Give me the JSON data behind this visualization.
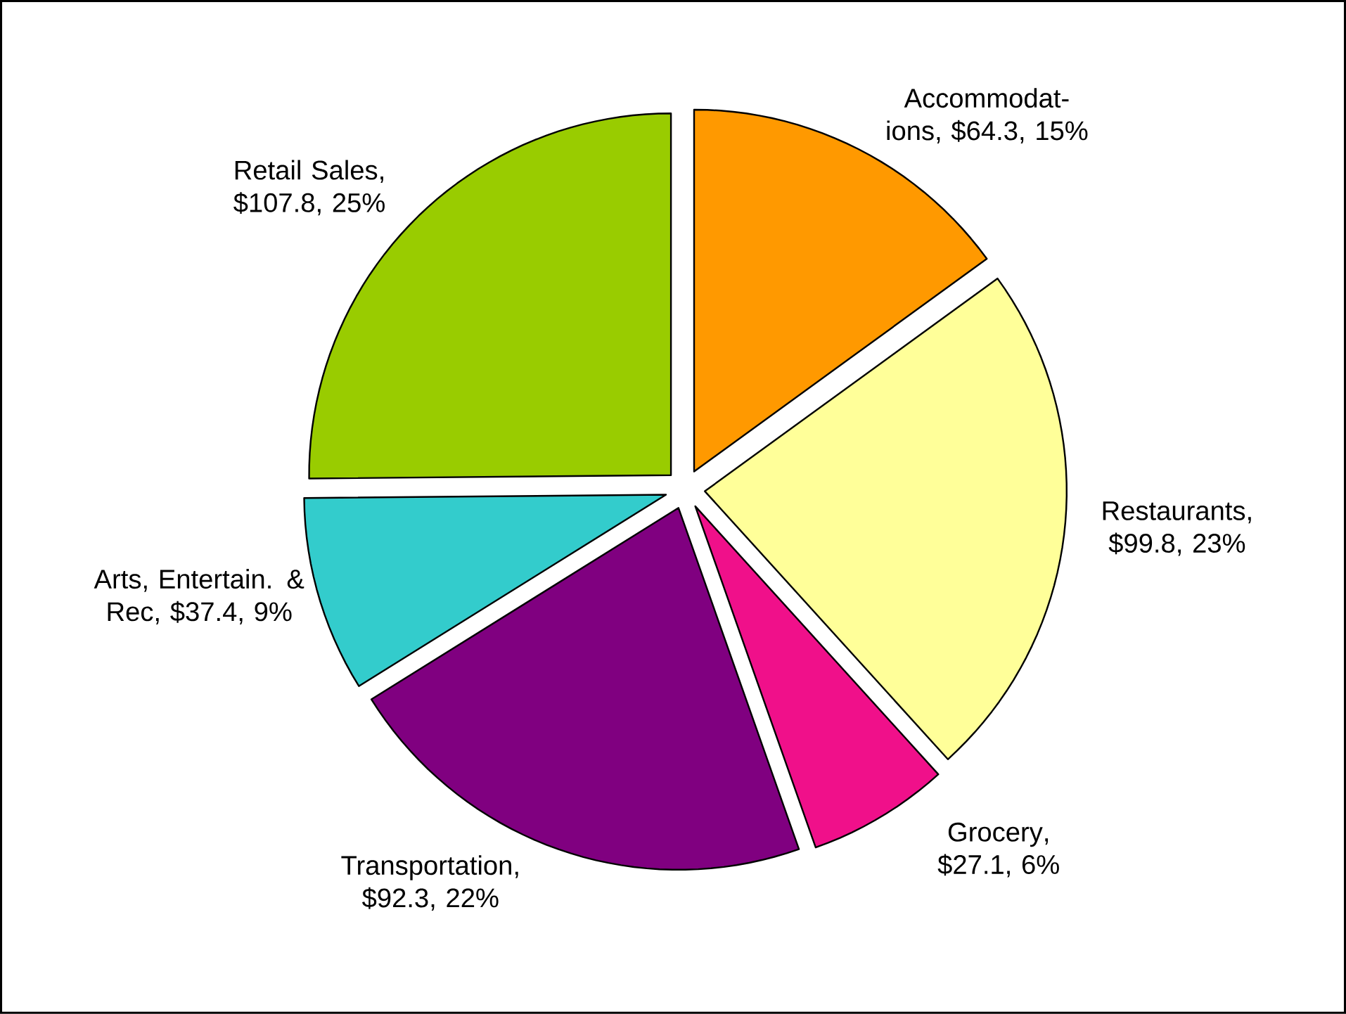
{
  "chart_data": {
    "type": "pie",
    "categories": [
      "Accommodat-ions",
      "Restaurants",
      "Grocery",
      "Transportation",
      "Arts, Entertain. & Rec",
      "Retail Sales"
    ],
    "values": [
      64.3,
      99.8,
      27.1,
      92.3,
      37.4,
      107.8
    ],
    "colors": [
      "#ff9900",
      "#ffff99",
      "#f0108a",
      "#800080",
      "#33cccc",
      "#99cc00"
    ],
    "value_labels": [
      ", $64.3, 15%",
      ", $99.8, 23%",
      ", $27.1, 6%",
      ", $92.3, 22%",
      ", $37.4, 9%",
      ", $107.8, 25%"
    ]
  }
}
